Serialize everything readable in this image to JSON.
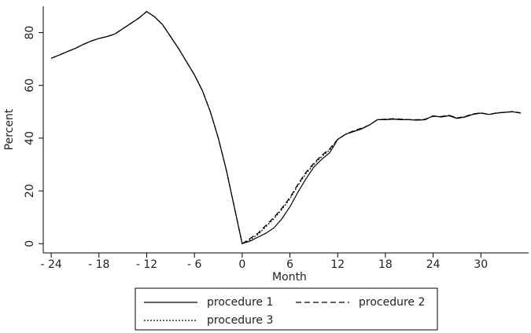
{
  "chart_data": {
    "type": "line",
    "x_label": "Month",
    "y_label": "Percent",
    "x": [
      -24,
      -23,
      -22,
      -21,
      -20,
      -19,
      -18,
      -17,
      -16,
      -15,
      -14,
      -13,
      -12,
      -11,
      -10,
      -9,
      -8,
      -7,
      -6,
      -5,
      -4,
      -3,
      -2,
      -1,
      0,
      1,
      2,
      3,
      4,
      5,
      6,
      7,
      8,
      9,
      10,
      11,
      12,
      13,
      14,
      15,
      16,
      17,
      18,
      19,
      20,
      21,
      22,
      23,
      24,
      25,
      26,
      27,
      28,
      29,
      30,
      31,
      32,
      33,
      34,
      35
    ],
    "series": [
      {
        "name": "procedure 1",
        "color": "#000000",
        "dash": "solid",
        "values": [
          70.3,
          71.5,
          72.8,
          74,
          75.5,
          76.8,
          77.8,
          78.5,
          79.5,
          81.5,
          83.5,
          85.5,
          88,
          86,
          83,
          78.5,
          74,
          69,
          64,
          58,
          50,
          40,
          28,
          14,
          0,
          1,
          2.5,
          4,
          6,
          9.5,
          14,
          19.5,
          24.5,
          29,
          32,
          34.5,
          39.5,
          41.5,
          42.5,
          43.5,
          45,
          47,
          47,
          47.2,
          47,
          47,
          46.8,
          47,
          48.5,
          48,
          48.5,
          47.5,
          48,
          49,
          49.5,
          49,
          49.5,
          49.8,
          50,
          49.5
        ]
      },
      {
        "name": "procedure 2",
        "color": "#000000",
        "dash": "dashed",
        "values": [
          70.3,
          71.5,
          72.8,
          74,
          75.5,
          76.8,
          77.8,
          78.5,
          79.5,
          81.5,
          83.5,
          85.5,
          88,
          86,
          83,
          78.5,
          74,
          69,
          64,
          58,
          50,
          40,
          28,
          14,
          0,
          2,
          4,
          7,
          10,
          13.5,
          17.5,
          22.5,
          27,
          30.5,
          33.5,
          36,
          39.5,
          41.5,
          42.8,
          43.8,
          45,
          47,
          47.2,
          47.4,
          47.2,
          47,
          47,
          47.2,
          48.3,
          48.2,
          48.7,
          47.7,
          48.2,
          49.2,
          49.6,
          49,
          49.6,
          49.8,
          50.1,
          49.6
        ]
      },
      {
        "name": "procedure 3",
        "color": "#000000",
        "dash": "dotted",
        "values": [
          70.3,
          71.5,
          72.8,
          74,
          75.5,
          76.8,
          77.8,
          78.5,
          79.5,
          81.5,
          83.5,
          85.5,
          88,
          86,
          83,
          78.5,
          74,
          69,
          64,
          58,
          50,
          40,
          28,
          14,
          0,
          1.5,
          3.5,
          6.5,
          9.5,
          13,
          17,
          22,
          26.5,
          30,
          33,
          35.5,
          39.5,
          41.5,
          42.6,
          43.6,
          45,
          47,
          47.1,
          47.3,
          47.1,
          47,
          46.9,
          47.1,
          48.4,
          48.1,
          48.6,
          47.6,
          48.1,
          49.1,
          49.5,
          49,
          49.5,
          49.8,
          50,
          49.5
        ]
      }
    ],
    "xlim": [
      -25,
      36
    ],
    "ylim": [
      -3.5,
      90
    ],
    "xticks": [
      {
        "value": -24,
        "label": "- 24"
      },
      {
        "value": -18,
        "label": "- 18"
      },
      {
        "value": -12,
        "label": "- 12"
      },
      {
        "value": -6,
        "label": "- 6"
      },
      0,
      6,
      12,
      18,
      24,
      30
    ],
    "yticks": [
      0,
      20,
      40,
      60,
      80
    ],
    "legend": "bottom"
  }
}
